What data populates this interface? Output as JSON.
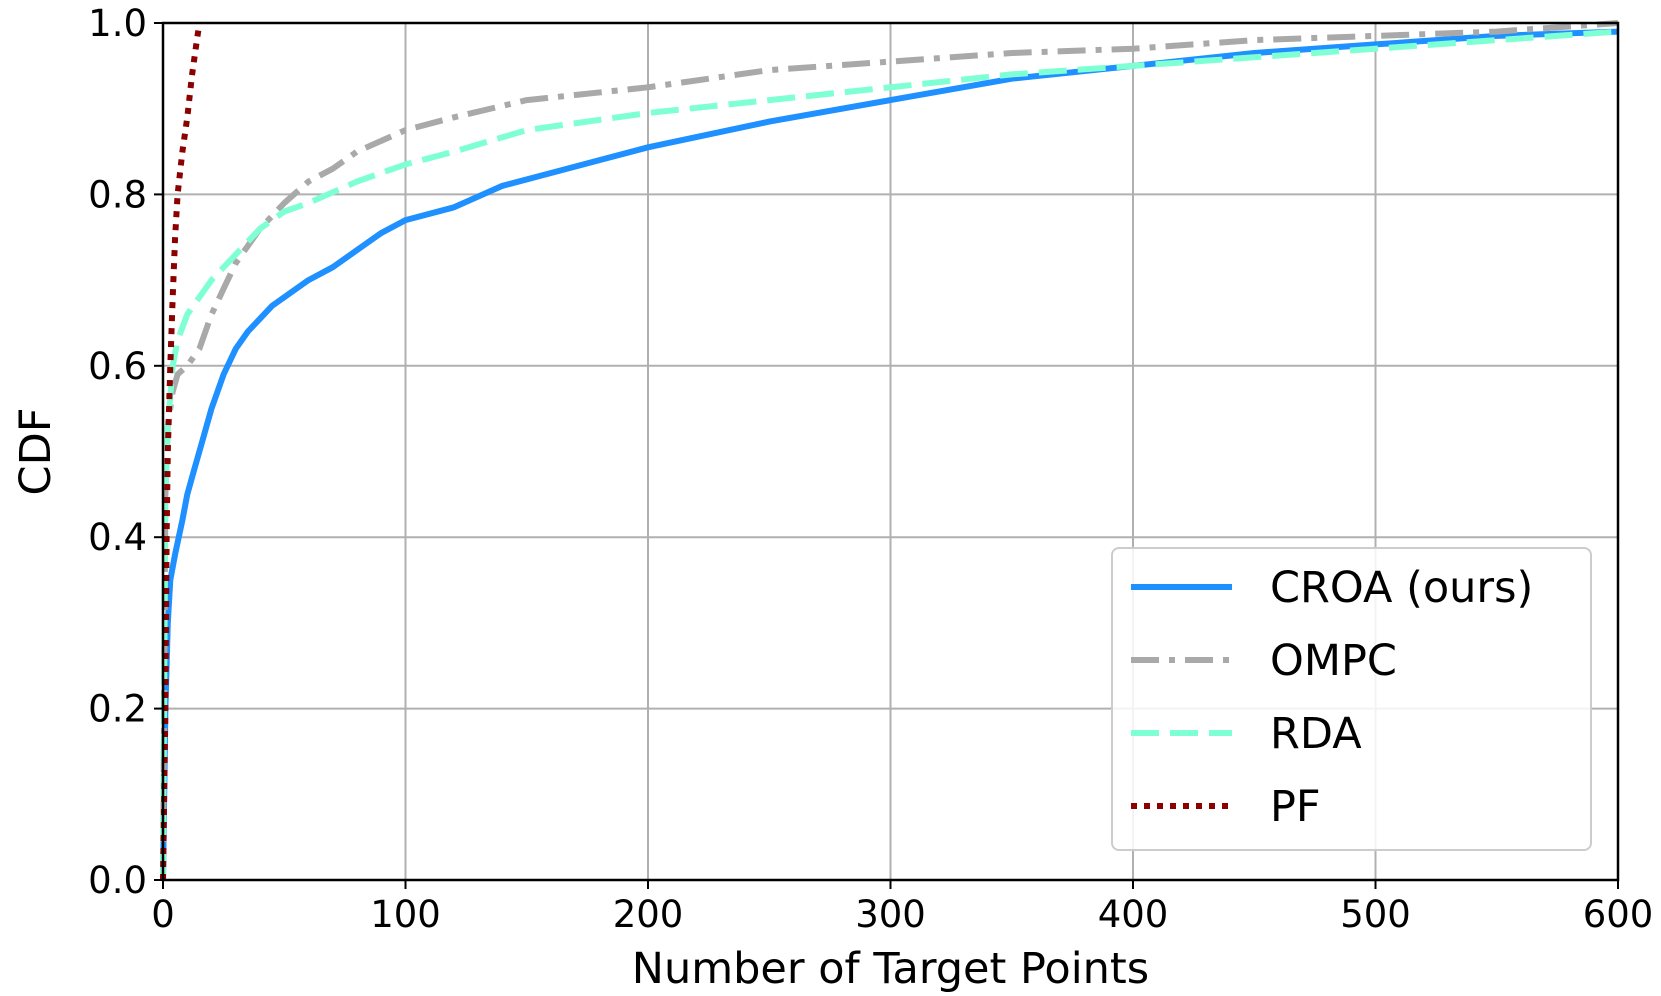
{
  "chart_data": {
    "type": "line",
    "title": "",
    "xlabel": "Number of Target Points",
    "ylabel": "CDF",
    "xlim": [
      0,
      600
    ],
    "ylim": [
      0,
      1.0
    ],
    "xticks": [
      0,
      100,
      200,
      300,
      400,
      500,
      600
    ],
    "yticks": [
      0.0,
      0.2,
      0.4,
      0.6,
      0.8,
      1.0
    ],
    "xtick_labels": [
      "0",
      "100",
      "200",
      "300",
      "400",
      "500",
      "600"
    ],
    "ytick_labels": [
      "0.0",
      "0.2",
      "0.4",
      "0.6",
      "0.8",
      "1.0"
    ],
    "grid": true,
    "legend_position": "lower-right",
    "series": [
      {
        "name": "CROA (ours)",
        "color": "#1e90ff",
        "style": "solid",
        "x": [
          0,
          1,
          2,
          3,
          5,
          8,
          10,
          13,
          16,
          20,
          25,
          30,
          35,
          40,
          45,
          50,
          60,
          70,
          80,
          90,
          100,
          120,
          140,
          160,
          180,
          200,
          250,
          300,
          350,
          400,
          450,
          500,
          550,
          600
        ],
        "y": [
          0.0,
          0.2,
          0.3,
          0.35,
          0.38,
          0.42,
          0.45,
          0.48,
          0.51,
          0.55,
          0.59,
          0.62,
          0.64,
          0.655,
          0.67,
          0.68,
          0.7,
          0.715,
          0.735,
          0.755,
          0.77,
          0.785,
          0.81,
          0.825,
          0.84,
          0.855,
          0.885,
          0.91,
          0.935,
          0.95,
          0.965,
          0.975,
          0.985,
          0.99
        ]
      },
      {
        "name": "OMPC",
        "color": "#a9a9a9",
        "style": "dashdot",
        "x": [
          0,
          1,
          2,
          4,
          6,
          10,
          15,
          20,
          25,
          30,
          40,
          50,
          60,
          70,
          80,
          100,
          120,
          150,
          200,
          250,
          300,
          350,
          400,
          450,
          500,
          550,
          600
        ],
        "y": [
          0.0,
          0.45,
          0.53,
          0.57,
          0.59,
          0.6,
          0.62,
          0.66,
          0.69,
          0.72,
          0.76,
          0.79,
          0.815,
          0.83,
          0.85,
          0.875,
          0.89,
          0.91,
          0.925,
          0.945,
          0.955,
          0.965,
          0.97,
          0.98,
          0.985,
          0.99,
          1.0
        ]
      },
      {
        "name": "RDA",
        "color": "#7fffd4",
        "style": "dashed",
        "x": [
          0,
          1,
          2,
          4,
          6,
          10,
          15,
          20,
          30,
          40,
          50,
          60,
          80,
          100,
          120,
          150,
          200,
          250,
          300,
          350,
          400,
          450,
          500,
          550,
          600
        ],
        "y": [
          0.0,
          0.45,
          0.53,
          0.6,
          0.63,
          0.66,
          0.68,
          0.7,
          0.73,
          0.76,
          0.78,
          0.79,
          0.815,
          0.835,
          0.85,
          0.875,
          0.895,
          0.91,
          0.925,
          0.94,
          0.95,
          0.96,
          0.97,
          0.98,
          0.99
        ]
      },
      {
        "name": "PF",
        "color": "#8b0000",
        "style": "dotted",
        "x": [
          0,
          1,
          1.5,
          2,
          3,
          4,
          5,
          6,
          8,
          10,
          12,
          14,
          15
        ],
        "y": [
          0.0,
          0.2,
          0.4,
          0.5,
          0.6,
          0.68,
          0.75,
          0.8,
          0.85,
          0.89,
          0.94,
          0.98,
          1.0
        ]
      }
    ]
  }
}
